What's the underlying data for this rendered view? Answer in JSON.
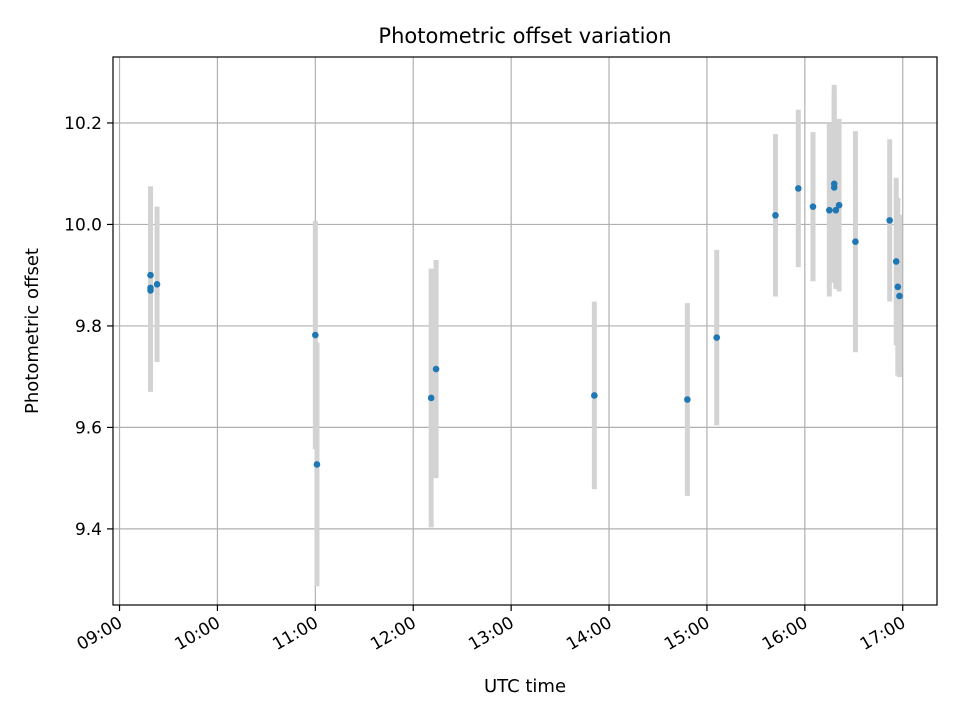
{
  "chart_data": {
    "type": "scatter",
    "title": "Photometric offset variation",
    "xlabel": "UTC time",
    "ylabel": "Photometric offset",
    "x_ticks": [
      "09:00",
      "10:00",
      "11:00",
      "12:00",
      "13:00",
      "14:00",
      "15:00",
      "16:00",
      "17:00"
    ],
    "y_ticks": [
      "9.4",
      "9.6",
      "9.8",
      "10.0",
      "10.2"
    ],
    "y_tick_values": [
      9.4,
      9.6,
      9.8,
      10.0,
      10.2
    ],
    "xlim": [
      "08:56",
      "17:21"
    ],
    "ylim": [
      9.25,
      10.33
    ],
    "grid": true,
    "colors": {
      "point": "#1f77b4",
      "errorbar": "#d3d3d3",
      "grid": "#b0b0b0"
    },
    "series": [
      {
        "points": [
          {
            "x": "09:19",
            "y": 9.87,
            "yerr": 0.2
          },
          {
            "x": "09:19",
            "y": 9.875,
            "yerr": 0.2
          },
          {
            "x": "09:19",
            "y": 9.9,
            "yerr": 0.175
          },
          {
            "x": "09:23",
            "y": 9.882,
            "yerr": 0.153
          },
          {
            "x": "11:00",
            "y": 9.782,
            "yerr": 0.225
          },
          {
            "x": "11:01",
            "y": 9.527,
            "yerr": 0.24
          },
          {
            "x": "12:11",
            "y": 9.658,
            "yerr": 0.255
          },
          {
            "x": "12:14",
            "y": 9.715,
            "yerr": 0.215
          },
          {
            "x": "13:51",
            "y": 9.663,
            "yerr": 0.185
          },
          {
            "x": "14:48",
            "y": 9.655,
            "yerr": 0.19
          },
          {
            "x": "15:06",
            "y": 9.777,
            "yerr": 0.173
          },
          {
            "x": "15:42",
            "y": 10.018,
            "yerr": 0.16
          },
          {
            "x": "15:56",
            "y": 10.071,
            "yerr": 0.155
          },
          {
            "x": "16:05",
            "y": 10.035,
            "yerr": 0.147
          },
          {
            "x": "16:15",
            "y": 10.028,
            "yerr": 0.17
          },
          {
            "x": "16:18",
            "y": 10.08,
            "yerr": 0.195
          },
          {
            "x": "16:18",
            "y": 10.073,
            "yerr": 0.185
          },
          {
            "x": "16:19",
            "y": 10.028,
            "yerr": 0.155
          },
          {
            "x": "16:21",
            "y": 10.038,
            "yerr": 0.17
          },
          {
            "x": "16:31",
            "y": 9.966,
            "yerr": 0.218
          },
          {
            "x": "16:52",
            "y": 10.008,
            "yerr": 0.16
          },
          {
            "x": "16:56",
            "y": 9.927,
            "yerr": 0.165
          },
          {
            "x": "16:57",
            "y": 9.877,
            "yerr": 0.175
          },
          {
            "x": "16:58",
            "y": 9.859,
            "yerr": 0.16
          }
        ]
      }
    ]
  }
}
